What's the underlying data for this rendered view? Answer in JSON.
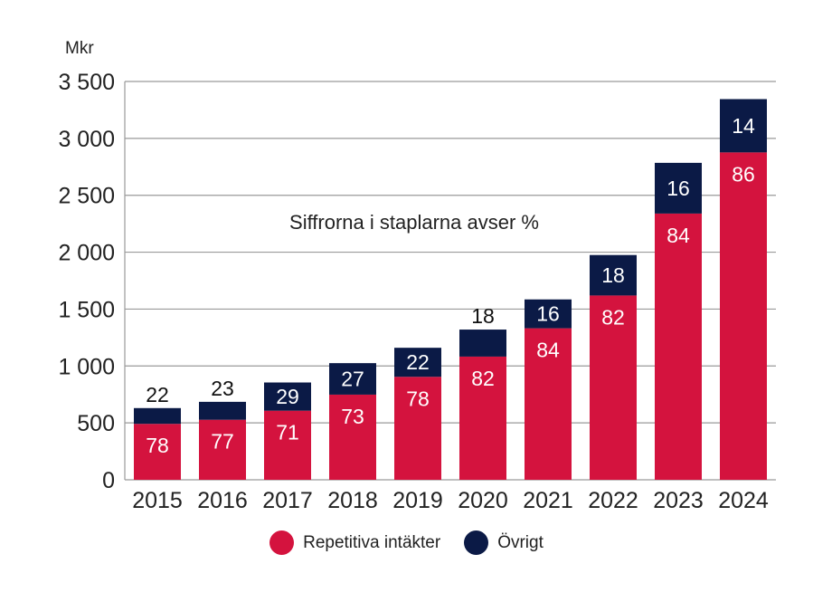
{
  "chart_data": {
    "type": "bar",
    "stacked": true,
    "unit_label": "Mkr",
    "note": "Siffrorna i staplarna avser %",
    "categories": [
      "2015",
      "2016",
      "2017",
      "2018",
      "2019",
      "2020",
      "2021",
      "2022",
      "2023",
      "2024"
    ],
    "totals": [
      630,
      685,
      855,
      1025,
      1160,
      1320,
      1585,
      1975,
      2785,
      3345
    ],
    "yticks": [
      "0",
      "500",
      "1 000",
      "1 500",
      "2 000",
      "2 500",
      "3 000",
      "3 500"
    ],
    "ylim": [
      0,
      3500
    ],
    "series": [
      {
        "name": "Repetitiva intäkter",
        "color": "#d4133e",
        "percent": [
          78,
          77,
          71,
          73,
          78,
          82,
          84,
          82,
          84,
          86
        ]
      },
      {
        "name": "Övrigt",
        "color": "#0b1a46",
        "percent": [
          22,
          23,
          29,
          27,
          22,
          18,
          16,
          18,
          16,
          14
        ]
      }
    ],
    "legend_position": "bottom-center",
    "grid": true
  }
}
